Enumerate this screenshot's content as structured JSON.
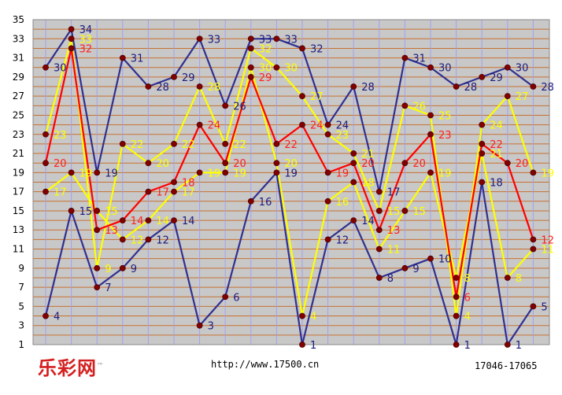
{
  "footer": {
    "logo": "乐彩网",
    "logo_tm": "™",
    "url": "http://www.17500.cn",
    "range": "17046-17065"
  },
  "colors": {
    "plot_bg": "#c8c8c8",
    "hgrid": "#c87030",
    "vgrid": "#a0a0ee",
    "tick": "#000000"
  },
  "chart_data": {
    "type": "line",
    "x": [
      1,
      2,
      3,
      4,
      5,
      6,
      7,
      8,
      9,
      10,
      11,
      12,
      13,
      14,
      15,
      16,
      17,
      18,
      19,
      20
    ],
    "ylim": [
      1,
      35
    ],
    "yticks": [
      1,
      3,
      5,
      7,
      9,
      11,
      13,
      15,
      17,
      19,
      21,
      23,
      25,
      27,
      29,
      31,
      33,
      35
    ],
    "series": [
      {
        "color": "#303090",
        "label_color": "#1a1a80",
        "values": [
          30,
          34,
          19,
          31,
          28,
          29,
          33,
          26,
          33,
          33,
          32,
          24,
          28,
          17,
          31,
          30,
          28,
          29,
          30,
          28
        ]
      },
      {
        "color": "#303090",
        "label_color": "#1a1a80",
        "values": [
          4,
          15,
          7,
          9,
          12,
          14,
          3,
          6,
          16,
          19,
          1,
          12,
          14,
          8,
          9,
          10,
          1,
          18,
          1,
          5
        ]
      },
      {
        "color": "#ffff00",
        "label_color": "#ffff00",
        "values": [
          23,
          33,
          9,
          22,
          20,
          22,
          28,
          22,
          32,
          30,
          27,
          23,
          21,
          15,
          26,
          25,
          4,
          24,
          27,
          19
        ]
      },
      {
        "color": "#ffff00",
        "label_color": "#ffff00",
        "values": [
          17,
          19,
          15,
          12,
          14,
          17,
          19,
          19,
          30,
          20,
          4,
          16,
          18,
          11,
          15,
          19,
          8,
          21,
          8,
          11
        ]
      },
      {
        "color": "#ff0000",
        "label_color": "#ff2020",
        "values": [
          20,
          32,
          13,
          14,
          17,
          18,
          24,
          20,
          29,
          22,
          24,
          19,
          20,
          13,
          20,
          23,
          6,
          22,
          20,
          12
        ]
      }
    ]
  }
}
